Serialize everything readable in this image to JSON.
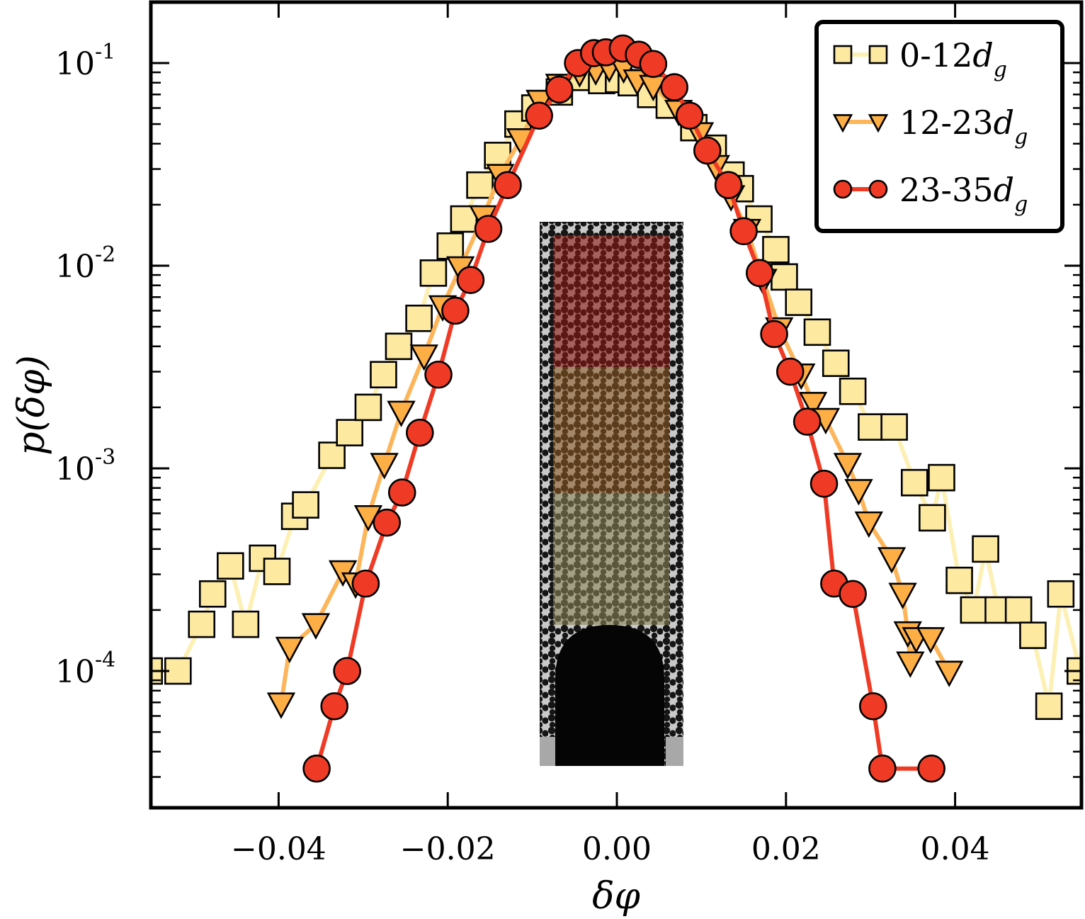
{
  "chart_data": {
    "type": "line",
    "title": "",
    "xlabel": "δφ",
    "ylabel": "p(δφ)",
    "xlim": [
      -0.056,
      0.055
    ],
    "ylim": [
      2e-05,
      0.2
    ],
    "yscale": "log",
    "grid": false,
    "legend_position": "top-right",
    "x_ticks": [
      {
        "value": -0.04,
        "label": "−0.04"
      },
      {
        "value": -0.02,
        "label": "−0.02"
      },
      {
        "value": 0.0,
        "label": "0.00"
      },
      {
        "value": 0.02,
        "label": "0.02"
      },
      {
        "value": 0.04,
        "label": "0.04"
      }
    ],
    "y_ticks": [
      {
        "value": 0.1,
        "base": "10",
        "exp": "-1"
      },
      {
        "value": 0.01,
        "base": "10",
        "exp": "-2"
      },
      {
        "value": 0.001,
        "base": "10",
        "exp": "-3"
      },
      {
        "value": 0.0001,
        "base": "10",
        "exp": "-4"
      }
    ],
    "series": [
      {
        "name": "0-12",
        "subscript_symbol": "d",
        "subscript": "g",
        "marker": "square",
        "color": "#fde9a0",
        "line_color": "#fdf0b4",
        "points": [
          [
            -0.0553,
            0.0001
          ],
          [
            -0.0519,
            0.0001
          ],
          [
            -0.0491,
            0.00017
          ],
          [
            -0.0478,
            0.00024
          ],
          [
            -0.0457,
            0.00033
          ],
          [
            -0.0439,
            0.00017
          ],
          [
            -0.0419,
            0.00036
          ],
          [
            -0.0402,
            0.00031
          ],
          [
            -0.0381,
            0.00058
          ],
          [
            -0.0368,
            0.00066
          ],
          [
            -0.0337,
            0.00116
          ],
          [
            -0.0316,
            0.0015
          ],
          [
            -0.0294,
            0.002
          ],
          [
            -0.0276,
            0.0029
          ],
          [
            -0.0258,
            0.004
          ],
          [
            -0.0234,
            0.0055
          ],
          [
            -0.0217,
            0.0092
          ],
          [
            -0.0197,
            0.0125
          ],
          [
            -0.0181,
            0.017
          ],
          [
            -0.0162,
            0.025
          ],
          [
            -0.0141,
            0.035
          ],
          [
            -0.0117,
            0.05
          ],
          [
            -0.0097,
            0.06
          ],
          [
            -0.0068,
            0.072
          ],
          [
            -0.0042,
            0.085
          ],
          [
            -0.0018,
            0.082
          ],
          [
            0.0002,
            0.083
          ],
          [
            0.0017,
            0.08
          ],
          [
            0.004,
            0.07
          ],
          [
            0.0062,
            0.062
          ],
          [
            0.0091,
            0.048
          ],
          [
            0.0114,
            0.038
          ],
          [
            0.0135,
            0.028
          ],
          [
            0.0146,
            0.024
          ],
          [
            0.0168,
            0.017
          ],
          [
            0.0188,
            0.012
          ],
          [
            0.0198,
            0.0088
          ],
          [
            0.0215,
            0.0066
          ],
          [
            0.0237,
            0.0047
          ],
          [
            0.0259,
            0.0033
          ],
          [
            0.0279,
            0.0024
          ],
          [
            0.0301,
            0.0016
          ],
          [
            0.0328,
            0.0016
          ],
          [
            0.0352,
            0.00085
          ],
          [
            0.0373,
            0.00057
          ],
          [
            0.0384,
            0.0009
          ],
          [
            0.0405,
            0.00028
          ],
          [
            0.0422,
            0.0002
          ],
          [
            0.0436,
            0.0004
          ],
          [
            0.0451,
            0.0002
          ],
          [
            0.0475,
            0.0002
          ],
          [
            0.0492,
            0.00015
          ],
          [
            0.0511,
            6.7e-05
          ],
          [
            0.0525,
            0.00024
          ],
          [
            0.0548,
            0.0001
          ]
        ]
      },
      {
        "name": "12-23",
        "subscript_symbol": "d",
        "subscript": "g",
        "marker": "triangle-down",
        "color": "#fdaf46",
        "line_color": "#fdb55a",
        "points": [
          [
            -0.0397,
            6.9e-05
          ],
          [
            -0.0387,
            0.00013
          ],
          [
            -0.0356,
            0.00017
          ],
          [
            -0.0324,
            0.00031
          ],
          [
            -0.0309,
            0.00027
          ],
          [
            -0.0294,
            0.00058
          ],
          [
            -0.0275,
            0.00105
          ],
          [
            -0.0255,
            0.0019
          ],
          [
            -0.0228,
            0.0036
          ],
          [
            -0.0206,
            0.0063
          ],
          [
            -0.0185,
            0.0098
          ],
          [
            -0.0158,
            0.0175
          ],
          [
            -0.0138,
            0.028
          ],
          [
            -0.0114,
            0.042
          ],
          [
            -0.0091,
            0.065
          ],
          [
            -0.0068,
            0.078
          ],
          [
            -0.0044,
            0.09
          ],
          [
            -0.0025,
            0.092
          ],
          [
            -0.0009,
            0.095
          ],
          [
            0.0008,
            0.094
          ],
          [
            0.0024,
            0.082
          ],
          [
            0.0043,
            0.077
          ],
          [
            0.0073,
            0.058
          ],
          [
            0.0098,
            0.045
          ],
          [
            0.0117,
            0.031
          ],
          [
            0.0135,
            0.022
          ],
          [
            0.0154,
            0.015
          ],
          [
            0.0173,
            0.0085
          ],
          [
            0.0192,
            0.0049
          ],
          [
            0.0218,
            0.0029
          ],
          [
            0.0232,
            0.0021
          ],
          [
            0.0247,
            0.00175
          ],
          [
            0.0273,
            0.00105
          ],
          [
            0.0286,
            0.00078
          ],
          [
            0.0298,
            0.00054
          ],
          [
            0.0325,
            0.00036
          ],
          [
            0.0338,
            0.00024
          ],
          [
            0.0344,
            0.000155
          ],
          [
            0.0347,
            0.00011
          ],
          [
            0.0354,
            0.000145
          ],
          [
            0.0371,
            0.000145
          ],
          [
            0.0393,
            9.9e-05
          ]
        ]
      },
      {
        "name": "23-35",
        "subscript_symbol": "d",
        "subscript": "g",
        "marker": "circle",
        "color": "#ef3b25",
        "line_color": "#ef3b25",
        "points": [
          [
            -0.0355,
            3.3e-05
          ],
          [
            -0.0334,
            6.7e-05
          ],
          [
            -0.0319,
            0.0001
          ],
          [
            -0.0297,
            0.00027
          ],
          [
            -0.0272,
            0.00054
          ],
          [
            -0.0254,
            0.00076
          ],
          [
            -0.0233,
            0.0015
          ],
          [
            -0.0211,
            0.0029
          ],
          [
            -0.0191,
            0.006
          ],
          [
            -0.0173,
            0.0085
          ],
          [
            -0.0152,
            0.0152
          ],
          [
            -0.0129,
            0.025
          ],
          [
            -0.0092,
            0.055
          ],
          [
            -0.0068,
            0.074
          ],
          [
            -0.0046,
            0.1
          ],
          [
            -0.0027,
            0.112
          ],
          [
            -0.0013,
            0.113
          ],
          [
            0.0007,
            0.118
          ],
          [
            0.0026,
            0.11
          ],
          [
            0.0043,
            0.099
          ],
          [
            0.0068,
            0.076
          ],
          [
            0.0086,
            0.055
          ],
          [
            0.0107,
            0.037
          ],
          [
            0.0132,
            0.025
          ],
          [
            0.015,
            0.0148
          ],
          [
            0.0169,
            0.0092
          ],
          [
            0.0186,
            0.0046
          ],
          [
            0.0205,
            0.003
          ],
          [
            0.0225,
            0.0017
          ],
          [
            0.0245,
            0.00084
          ],
          [
            0.0257,
            0.00027
          ],
          [
            0.0279,
            0.00024
          ],
          [
            0.0303,
            6.7e-05
          ],
          [
            0.0314,
            3.3e-05
          ],
          [
            0.0372,
            3.3e-05
          ]
        ]
      }
    ]
  }
}
